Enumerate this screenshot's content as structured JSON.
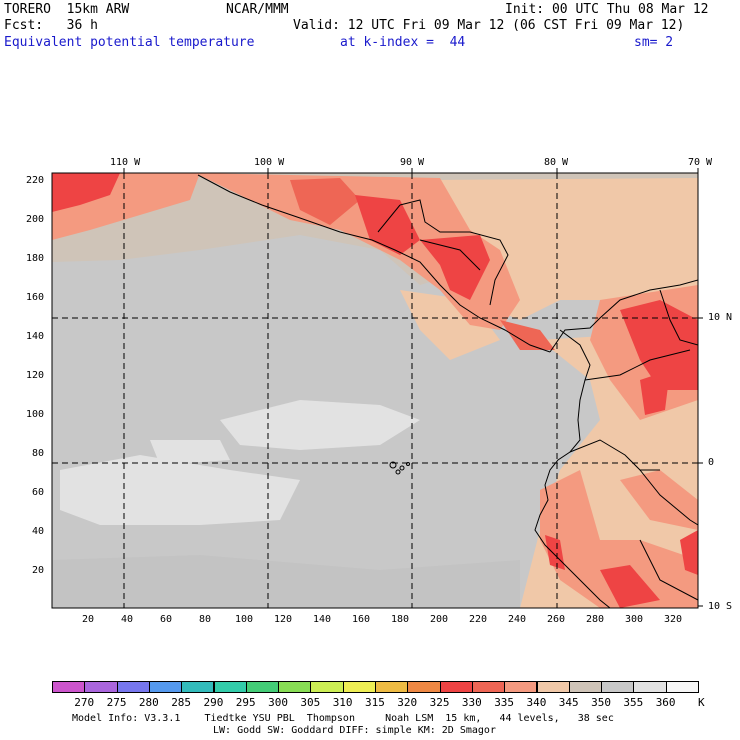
{
  "header": {
    "model": "TORERO  15km ARW",
    "org": "NCAR/MMM",
    "init": "Init: 00 UTC Thu 08 Mar 12",
    "fcst": "Fcst:   36 h",
    "valid": "Valid: 12 UTC Fri 09 Mar 12 (06 CST Fri 09 Mar 12)",
    "field": "Equivalent potential temperature",
    "level": "at k-index =  44",
    "smooth": "sm= 2"
  },
  "top_lon_labels": [
    "110 W",
    "100 W",
    "90 W",
    "80 W",
    "70 W"
  ],
  "right_lat_labels": [
    "10 N",
    "0",
    "10 S"
  ],
  "y_ticks": [
    "220",
    "200",
    "180",
    "160",
    "140",
    "120",
    "100",
    "80",
    "60",
    "40",
    "20"
  ],
  "x_ticks": [
    "20",
    "40",
    "60",
    "80",
    "100",
    "120",
    "140",
    "160",
    "180",
    "200",
    "220",
    "240",
    "260",
    "280",
    "300",
    "320"
  ],
  "colorbar": {
    "levels": [
      "270",
      "275",
      "280",
      "285",
      "290",
      "295",
      "300",
      "305",
      "310",
      "315",
      "320",
      "325",
      "330",
      "335",
      "340",
      "345",
      "350",
      "355",
      "360"
    ],
    "unit": "K",
    "colors": [
      "#cc55cc",
      "#aa66dd",
      "#7777ee",
      "#5599ee",
      "#33bbbb",
      "#33ccaa",
      "#44cc77",
      "#88dd55",
      "#ccee55",
      "#eeee55",
      "#eebb44",
      "#ee8844",
      "#ee4444",
      "#ee6655",
      "#f49a80",
      "#f0c8a8",
      "#cfc4b8",
      "#c8c8c8",
      "#e2e2e2",
      "#f6f6f6"
    ]
  },
  "footer": {
    "line1": "Model Info: V3.3.1    Tiedtke YSU PBL  Thompson     Noah LSM  15 km,   44 levels,   38 sec",
    "line2": "LW: Godd SW: Goddard DIFF: simple KM: 2D Smagor"
  }
}
